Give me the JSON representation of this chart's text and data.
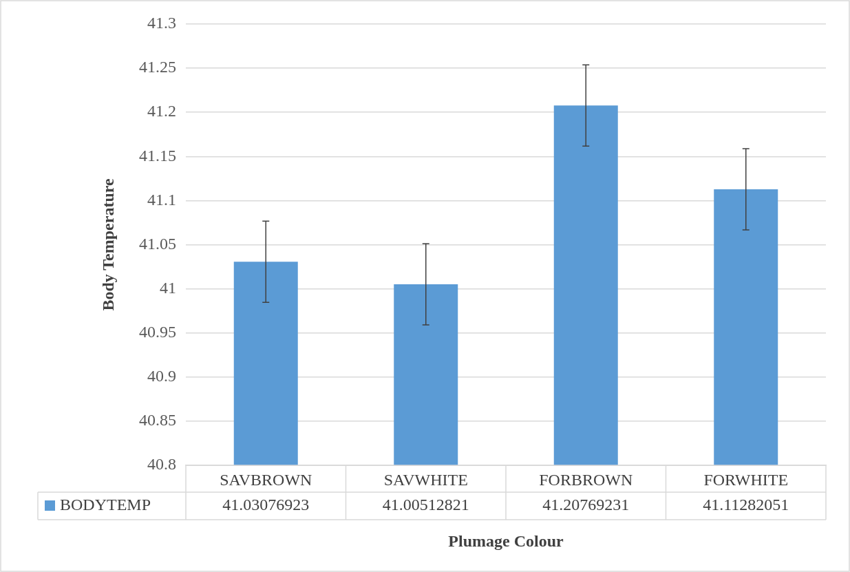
{
  "chart_data": {
    "type": "bar",
    "xlabel": "Plumage Colour",
    "ylabel": "Body Temperature",
    "categories": [
      "SAVBROWN",
      "SAVWHITE",
      "FORBROWN",
      "FORWHITE"
    ],
    "series": [
      {
        "name": "BODYTEMP",
        "color": "#5b9bd5",
        "values": [
          41.03076923,
          41.00512821,
          41.20769231,
          41.11282051
        ],
        "errors": [
          0.046,
          0.046,
          0.046,
          0.046
        ]
      }
    ],
    "ylim": [
      40.8,
      41.3
    ],
    "yticks": [
      40.8,
      40.85,
      40.9,
      40.95,
      41,
      41.05,
      41.1,
      41.15,
      41.2,
      41.25,
      41.3
    ],
    "grid": "y",
    "legend": "bottom",
    "data_labels": true
  }
}
